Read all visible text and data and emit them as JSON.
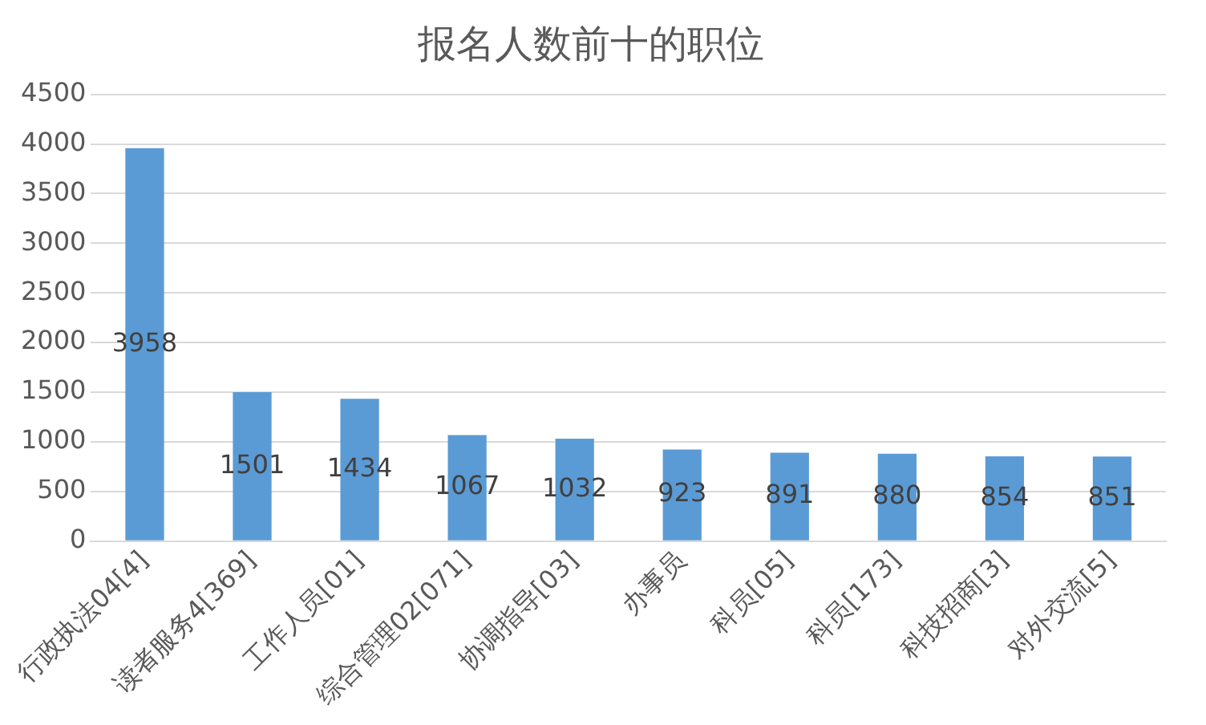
{
  "chart_data": {
    "type": "bar",
    "title": "报名人数前十的职位",
    "categories": [
      "行政执法04[4]",
      "读者服务4[369]",
      "工作人员[01]",
      "综合管理02[071]",
      "协调指导[03]",
      "办事员",
      "科员[05]",
      "科员[173]",
      "科技招商[3]",
      "对外交流[5]"
    ],
    "values": [
      3958,
      1501,
      1434,
      1067,
      1032,
      923,
      891,
      880,
      854,
      851
    ],
    "color": "#5b9bd5",
    "ylim": [
      0,
      4500
    ],
    "yticks": [
      0,
      500,
      1000,
      1500,
      2000,
      2500,
      3000,
      3500,
      4000,
      4500
    ],
    "grid": "y",
    "data_labels": true,
    "legend": false
  }
}
